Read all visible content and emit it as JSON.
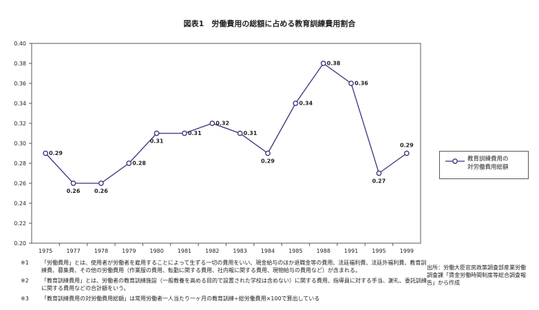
{
  "title": "図表1　労働費用の総額に占める教育訓練費用割合",
  "chart_data": {
    "type": "line",
    "categories": [
      "1975",
      "1977",
      "1978",
      "1979",
      "1980",
      "1981",
      "1982",
      "1983",
      "1984",
      "1985",
      "1988",
      "1991",
      "1995",
      "1999"
    ],
    "series": [
      {
        "name": "教育訓練費用の対労働費用総額",
        "values": [
          0.29,
          0.26,
          0.26,
          0.28,
          0.31,
          0.31,
          0.32,
          0.31,
          0.29,
          0.34,
          0.38,
          0.36,
          0.27,
          0.29
        ],
        "labels": [
          "0.29",
          "0.26",
          "0.26",
          "0.28",
          "0.31",
          "0.31",
          "0.32",
          "0.31",
          "0.29",
          "0.34",
          "0.38",
          "0.36",
          "0.27",
          "0.29"
        ]
      }
    ],
    "ylim": [
      0.2,
      0.4
    ],
    "yticks": [
      "0.20",
      "0.22",
      "0.24",
      "0.26",
      "0.28",
      "0.30",
      "0.32",
      "0.34",
      "0.36",
      "0.38",
      "0.40"
    ],
    "grid": false,
    "legend_position": "right",
    "line_color": "#3b2f7a"
  },
  "legend": {
    "line1": "教育訓練費用の",
    "line2": "対労働費用総額"
  },
  "source": "出所：労働大臣官房政策調査部産業労働調査課「賃金労働時間制度等総合調査報告」から作成",
  "notes": [
    {
      "mark": "※1",
      "text": "「労働費用」とは、使用者が労働者を雇用することによって生ずる一切の費用をいい、現金給与のほか退職金等の費用、法廷福利費、法廷外福利費、教育訓練費、募集費、その他の労働費用（作業服の費用、転勤に関する費用、社内報に関する費用、現物給与の費用など）が含まれる。"
    },
    {
      "mark": "※2",
      "text": "「教育訓練費用」とは、労働者の教育訓練施設（一般教養を高める目的で設置された学校は含めない）に関する費用、指導員に対する手当、謝礼、委託訓練に関する費用などの合計額をいう。"
    },
    {
      "mark": "※3",
      "text": "「教育訓練費用の対労働費用総額」は常用労働者一人当たり一ヶ月の教育訓練÷総労働費用×100で算出している"
    }
  ]
}
